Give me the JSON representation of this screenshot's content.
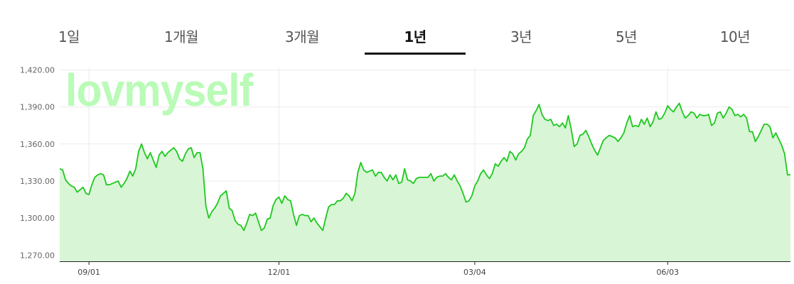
{
  "tabs": [
    {
      "label": "1일",
      "active": false
    },
    {
      "label": "1개월",
      "active": false
    },
    {
      "label": "3개월",
      "active": false
    },
    {
      "label": "1년",
      "active": true
    },
    {
      "label": "3년",
      "active": false
    },
    {
      "label": "5년",
      "active": false
    },
    {
      "label": "10년",
      "active": false
    }
  ],
  "watermark": "lovmyself",
  "colors": {
    "line": "#1ec81e",
    "fill": "#d8f5d6",
    "accent": "#111111"
  },
  "chart_data": {
    "type": "area",
    "ylim": [
      1265,
      1422
    ],
    "yticks": [
      "1,420.00",
      "1,390.00",
      "1,360.00",
      "1,330.00",
      "1,300.00",
      "1,270.00"
    ],
    "ytick_values": [
      1420,
      1390,
      1360,
      1330,
      1300,
      1270
    ],
    "xtick_labels": [
      "09/01",
      "12/01",
      "03/04",
      "06/03"
    ],
    "xtick_index": [
      10,
      75,
      142,
      208
    ],
    "grid": true,
    "values": [
      1340,
      1339,
      1331,
      1328,
      1326,
      1325,
      1321,
      1323,
      1325,
      1320,
      1319,
      1327,
      1333,
      1335,
      1336,
      1335,
      1327,
      1327,
      1328,
      1329,
      1330,
      1325,
      1328,
      1332,
      1338,
      1334,
      1340,
      1354,
      1360,
      1353,
      1348,
      1353,
      1347,
      1341,
      1351,
      1354,
      1350,
      1353,
      1355,
      1357,
      1354,
      1348,
      1346,
      1352,
      1356,
      1357,
      1349,
      1353,
      1353,
      1340,
      1310,
      1300,
      1305,
      1308,
      1312,
      1318,
      1320,
      1322,
      1308,
      1306,
      1298,
      1295,
      1294,
      1290,
      1296,
      1303,
      1302,
      1304,
      1297,
      1290,
      1292,
      1299,
      1300,
      1310,
      1315,
      1317,
      1312,
      1318,
      1315,
      1314,
      1303,
      1294,
      1302,
      1303,
      1302,
      1302,
      1297,
      1300,
      1296,
      1293,
      1290,
      1300,
      1309,
      1311,
      1311,
      1314,
      1314,
      1316,
      1320,
      1318,
      1314,
      1320,
      1337,
      1345,
      1339,
      1337,
      1338,
      1339,
      1334,
      1337,
      1337,
      1333,
      1330,
      1335,
      1331,
      1335,
      1328,
      1329,
      1340,
      1331,
      1330,
      1328,
      1332,
      1333,
      1333,
      1333,
      1333,
      1336,
      1330,
      1333,
      1334,
      1334,
      1336,
      1333,
      1331,
      1335,
      1330,
      1326,
      1320,
      1313,
      1314,
      1318,
      1326,
      1330,
      1336,
      1339,
      1335,
      1332,
      1336,
      1344,
      1342,
      1346,
      1349,
      1346,
      1354,
      1352,
      1347,
      1352,
      1354,
      1357,
      1364,
      1367,
      1383,
      1387,
      1392,
      1384,
      1380,
      1379,
      1380,
      1375,
      1376,
      1374,
      1377,
      1373,
      1383,
      1372,
      1358,
      1360,
      1367,
      1368,
      1371,
      1366,
      1360,
      1355,
      1351,
      1357,
      1363,
      1365,
      1367,
      1366,
      1365,
      1362,
      1365,
      1369,
      1377,
      1383,
      1374,
      1375,
      1374,
      1380,
      1376,
      1381,
      1374,
      1378,
      1386,
      1380,
      1381,
      1385,
      1391,
      1388,
      1386,
      1390,
      1393,
      1386,
      1381,
      1383,
      1386,
      1385,
      1381,
      1384,
      1383,
      1383,
      1384,
      1375,
      1377,
      1385,
      1386,
      1381,
      1385,
      1390,
      1388,
      1383,
      1384,
      1382,
      1384,
      1381,
      1370,
      1370,
      1362,
      1366,
      1371,
      1376,
      1376,
      1374,
      1365,
      1369,
      1364,
      1359,
      1352,
      1335,
      1335
    ]
  }
}
